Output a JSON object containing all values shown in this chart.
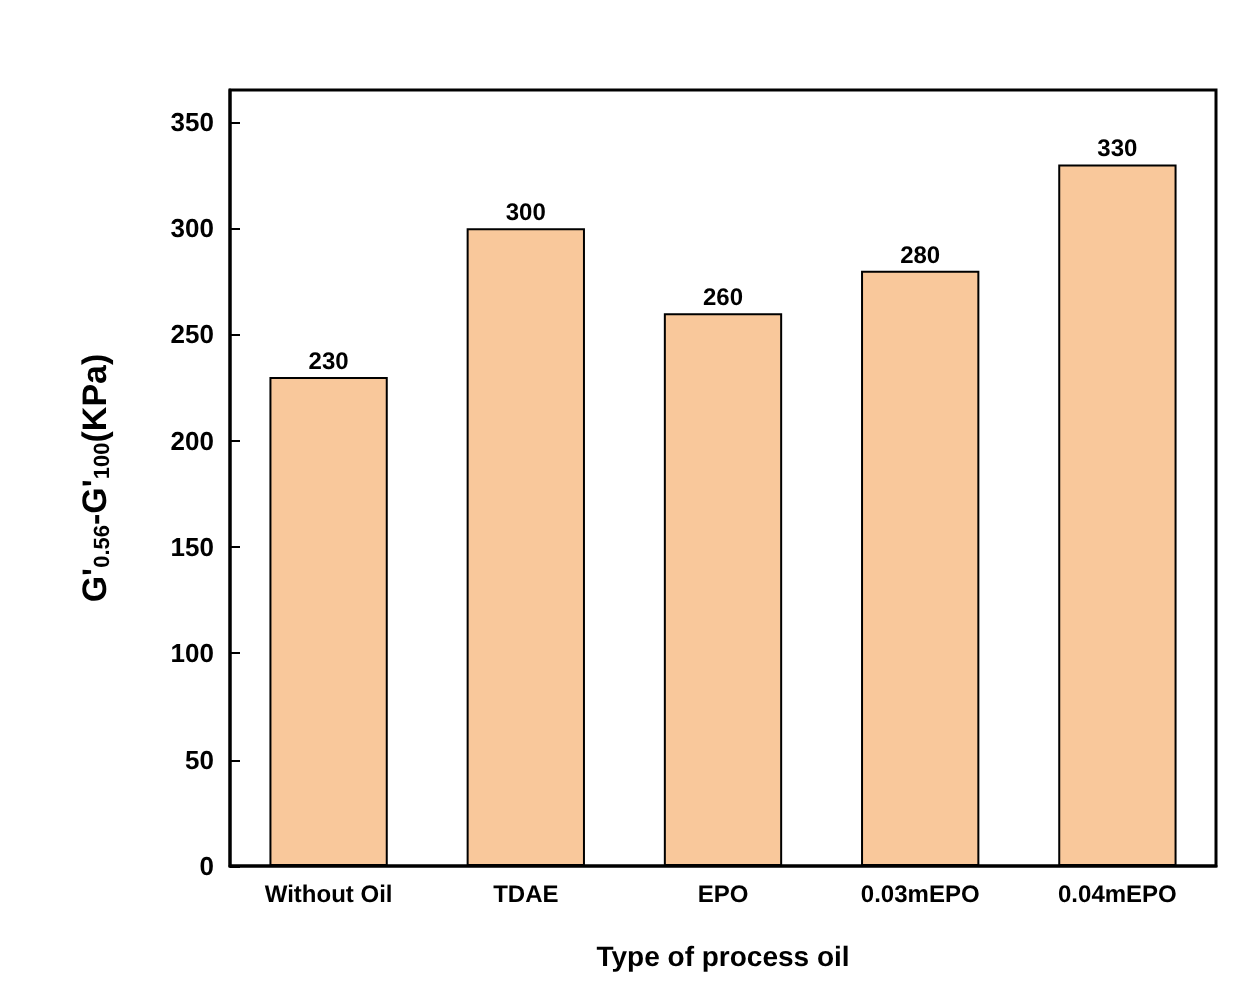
{
  "chart_data": {
    "type": "bar",
    "xlabel": "Type of process oil",
    "ylabel": "G'$_{0.56}$-G'$_{100}$(KPa)",
    "categories": [
      "Without Oil",
      "TDAE",
      "EPO",
      "0.03mEPO",
      "0.04mEPO"
    ],
    "values": [
      230,
      300,
      260,
      280,
      330
    ],
    "color": "#f9c89b",
    "ylim": [
      0,
      365
    ],
    "yticks": [
      0,
      50,
      100,
      150,
      200,
      250,
      300,
      350
    ],
    "grid": false,
    "data_labels": true
  }
}
